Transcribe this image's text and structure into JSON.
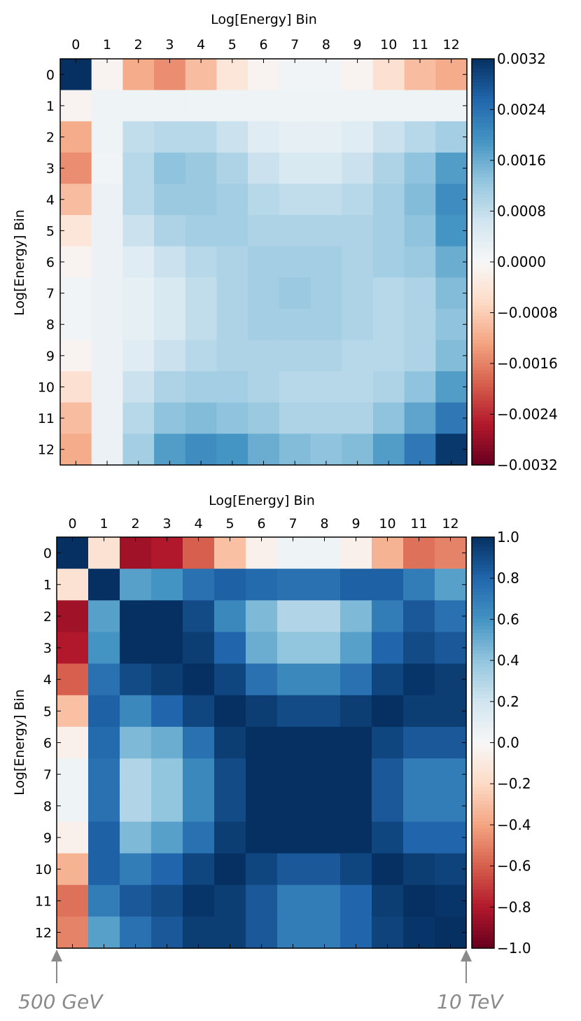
{
  "chart_data": [
    {
      "type": "heatmap",
      "title": "",
      "xlabel": "Log[Energy] Bin",
      "ylabel": "Log[Energy] Bin",
      "x_ticks": [
        "0",
        "1",
        "2",
        "3",
        "4",
        "5",
        "6",
        "7",
        "8",
        "9",
        "10",
        "11",
        "12"
      ],
      "y_ticks": [
        "0",
        "1",
        "2",
        "3",
        "4",
        "5",
        "6",
        "7",
        "8",
        "9",
        "10",
        "11",
        "12"
      ],
      "colormap": "RdBu",
      "vmin": -0.0032,
      "vmax": 0.0032,
      "colorbar_ticks": [
        "0.0032",
        "0.0024",
        "0.0016",
        "0.0008",
        "0.0000",
        "−0.0008",
        "−0.0016",
        "−0.0024",
        "−0.0032"
      ],
      "colorbar_values": [
        0.0032,
        0.0024,
        0.0016,
        0.0008,
        0.0,
        -0.0008,
        -0.0016,
        -0.0024,
        -0.0032
      ],
      "matrix": [
        [
          0.0032,
          -0.0001,
          -0.0012,
          -0.0015,
          -0.001,
          -0.0004,
          -0.0001,
          0.0001,
          0.0001,
          -0.0001,
          -0.0005,
          -0.001,
          -0.0012
        ],
        [
          -0.0001,
          0.00015,
          0.00015,
          0.00015,
          0.00015,
          0.00015,
          0.00015,
          0.00015,
          0.00015,
          0.00015,
          0.00015,
          0.00015,
          0.00015
        ],
        [
          -0.0012,
          0.00015,
          0.0008,
          0.0009,
          0.0009,
          0.0007,
          0.0004,
          0.0003,
          0.0003,
          0.0004,
          0.0007,
          0.0009,
          0.0011
        ],
        [
          -0.0015,
          0.0001,
          0.0009,
          0.0013,
          0.0012,
          0.001,
          0.0007,
          0.0005,
          0.0005,
          0.0007,
          0.001,
          0.0013,
          0.0018
        ],
        [
          -0.001,
          0.0002,
          0.0009,
          0.0012,
          0.0012,
          0.0011,
          0.0009,
          0.0008,
          0.0008,
          0.0009,
          0.0011,
          0.0014,
          0.002
        ],
        [
          -0.0004,
          0.0002,
          0.0007,
          0.001,
          0.0011,
          0.0011,
          0.001,
          0.001,
          0.001,
          0.001,
          0.0011,
          0.0013,
          0.0019
        ],
        [
          -0.0001,
          0.0002,
          0.0004,
          0.0007,
          0.0009,
          0.001,
          0.0011,
          0.0011,
          0.0011,
          0.001,
          0.0011,
          0.0012,
          0.0016
        ],
        [
          0.0001,
          0.0002,
          0.0003,
          0.0005,
          0.0008,
          0.001,
          0.0011,
          0.0012,
          0.0011,
          0.001,
          0.0009,
          0.001,
          0.0014
        ],
        [
          0.0001,
          0.0002,
          0.0003,
          0.0005,
          0.0008,
          0.001,
          0.0011,
          0.0011,
          0.0011,
          0.001,
          0.0009,
          0.001,
          0.0013
        ],
        [
          -0.0001,
          0.0002,
          0.0004,
          0.0007,
          0.0009,
          0.001,
          0.001,
          0.001,
          0.001,
          0.0009,
          0.0009,
          0.001,
          0.0014
        ],
        [
          -0.0005,
          0.0002,
          0.0007,
          0.001,
          0.0011,
          0.0011,
          0.001,
          0.0009,
          0.0009,
          0.0009,
          0.001,
          0.0013,
          0.0018
        ],
        [
          -0.001,
          0.0002,
          0.0009,
          0.0013,
          0.0014,
          0.0013,
          0.0012,
          0.001,
          0.001,
          0.001,
          0.0013,
          0.0017,
          0.0023
        ],
        [
          -0.0012,
          0.0002,
          0.0011,
          0.0018,
          0.002,
          0.0019,
          0.0016,
          0.0014,
          0.0013,
          0.0014,
          0.0018,
          0.0023,
          0.0031
        ]
      ]
    },
    {
      "type": "heatmap",
      "title": "",
      "xlabel": "Log[Energy] Bin",
      "ylabel": "Log[Energy] Bin",
      "x_ticks": [
        "0",
        "1",
        "2",
        "3",
        "4",
        "5",
        "6",
        "7",
        "8",
        "9",
        "10",
        "11",
        "12"
      ],
      "y_ticks": [
        "0",
        "1",
        "2",
        "3",
        "4",
        "5",
        "6",
        "7",
        "8",
        "9",
        "10",
        "11",
        "12"
      ],
      "colormap": "RdBu",
      "vmin": -1.0,
      "vmax": 1.0,
      "colorbar_ticks": [
        "1.0",
        "0.8",
        "0.6",
        "0.4",
        "0.2",
        "0.0",
        "−0.2",
        "−0.4",
        "−0.6",
        "−0.8",
        "−1.0"
      ],
      "colorbar_values": [
        1.0,
        0.8,
        0.6,
        0.4,
        0.2,
        0.0,
        -0.2,
        -0.4,
        -0.6,
        -0.8,
        -1.0
      ],
      "matrix": [
        [
          1.0,
          -0.15,
          -0.85,
          -0.8,
          -0.6,
          -0.3,
          -0.05,
          0.05,
          0.05,
          -0.05,
          -0.35,
          -0.55,
          -0.5
        ],
        [
          -0.15,
          1.0,
          0.55,
          0.6,
          0.75,
          0.82,
          0.78,
          0.75,
          0.75,
          0.82,
          0.82,
          0.7,
          0.55
        ],
        [
          -0.85,
          0.55,
          1.0,
          1.0,
          0.9,
          0.65,
          0.45,
          0.3,
          0.3,
          0.45,
          0.7,
          0.85,
          0.75
        ],
        [
          -0.8,
          0.6,
          1.0,
          1.0,
          0.95,
          0.8,
          0.5,
          0.4,
          0.4,
          0.55,
          0.8,
          0.9,
          0.85
        ],
        [
          -0.6,
          0.75,
          0.9,
          0.95,
          1.0,
          0.92,
          0.75,
          0.65,
          0.65,
          0.75,
          0.92,
          0.98,
          0.95
        ],
        [
          -0.3,
          0.82,
          0.65,
          0.8,
          0.92,
          1.0,
          0.95,
          0.9,
          0.9,
          0.95,
          1.0,
          0.95,
          0.95
        ],
        [
          -0.05,
          0.78,
          0.45,
          0.5,
          0.75,
          0.95,
          1.0,
          1.0,
          1.0,
          1.0,
          0.92,
          0.85,
          0.85
        ],
        [
          0.05,
          0.75,
          0.3,
          0.4,
          0.65,
          0.9,
          1.0,
          1.0,
          1.0,
          1.0,
          0.85,
          0.7,
          0.7
        ],
        [
          0.05,
          0.75,
          0.3,
          0.4,
          0.65,
          0.9,
          1.0,
          1.0,
          1.0,
          1.0,
          0.85,
          0.7,
          0.7
        ],
        [
          -0.05,
          0.82,
          0.45,
          0.55,
          0.75,
          0.95,
          1.0,
          1.0,
          1.0,
          1.0,
          0.92,
          0.8,
          0.8
        ],
        [
          -0.35,
          0.82,
          0.7,
          0.8,
          0.92,
          1.0,
          0.92,
          0.85,
          0.85,
          0.92,
          1.0,
          0.95,
          0.93
        ],
        [
          -0.55,
          0.7,
          0.85,
          0.9,
          0.98,
          0.95,
          0.85,
          0.7,
          0.7,
          0.8,
          0.95,
          1.0,
          0.98
        ],
        [
          -0.5,
          0.55,
          0.75,
          0.85,
          0.95,
          0.95,
          0.85,
          0.7,
          0.7,
          0.8,
          0.93,
          0.98,
          1.0
        ]
      ]
    }
  ],
  "annotations": {
    "left_energy": "500 GeV",
    "right_energy": "10 TeV"
  }
}
